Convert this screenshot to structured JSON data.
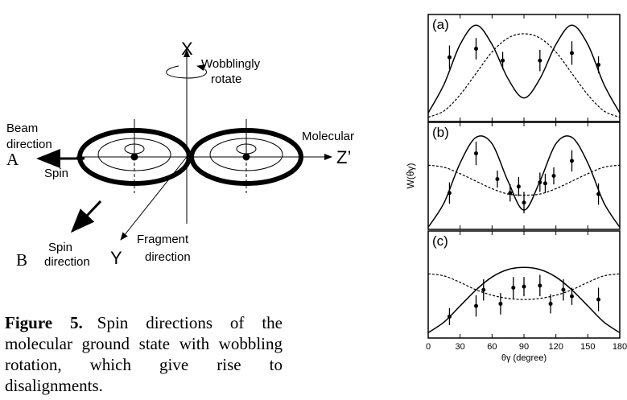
{
  "diagram": {
    "x_axis": "X",
    "rotate": [
      "Wobblingly",
      "rotate"
    ],
    "beam": [
      "Beam",
      "direction"
    ],
    "molecular": "Molecular",
    "z_axis": "Z’",
    "a": "A",
    "spin": "Spin",
    "b": "B",
    "spin_direction": [
      "Spin",
      "direction"
    ],
    "y_axis": "Y",
    "fragment": [
      "Fragment",
      "direction"
    ]
  },
  "caption": {
    "label": "Figure 5.",
    "text": "Spin directions of the molecular ground state with wobbling rotation, which give rise to disalignments."
  },
  "chart_data": [
    {
      "type": "scatter",
      "label": "(a)",
      "xlim": [
        0,
        180
      ],
      "xticks": [
        0,
        30,
        60,
        90,
        120,
        150,
        180
      ],
      "ylim": [
        0,
        1
      ],
      "series": [
        {
          "style": "solid",
          "color": "#000",
          "x": [
            0,
            15,
            30,
            45,
            60,
            75,
            90,
            105,
            120,
            135,
            150,
            165,
            180
          ],
          "values": [
            0.08,
            0.35,
            0.72,
            0.9,
            0.72,
            0.4,
            0.22,
            0.4,
            0.72,
            0.9,
            0.72,
            0.35,
            0.08
          ]
        },
        {
          "style": "dashed",
          "color": "#000",
          "x": [
            0,
            15,
            30,
            45,
            60,
            75,
            90,
            105,
            120,
            135,
            150,
            165,
            180
          ],
          "values": [
            0.04,
            0.1,
            0.25,
            0.45,
            0.65,
            0.78,
            0.82,
            0.78,
            0.65,
            0.45,
            0.25,
            0.1,
            0.04
          ]
        },
        {
          "style": "points",
          "color": "#000",
          "x": [
            20,
            45,
            70,
            105,
            135,
            160
          ],
          "values": [
            0.6,
            0.68,
            0.57,
            0.57,
            0.64,
            0.53
          ],
          "errors": [
            0.11,
            0.1,
            0.08,
            0.1,
            0.11,
            0.08
          ]
        }
      ]
    },
    {
      "type": "scatter",
      "label": "(b)",
      "ylabel": "W(θγ)",
      "xlim": [
        0,
        180
      ],
      "xticks": [
        0,
        30,
        60,
        90,
        120,
        150,
        180
      ],
      "ylim": [
        0,
        1
      ],
      "series": [
        {
          "style": "solid",
          "color": "#000",
          "x": [
            0,
            15,
            30,
            45,
            60,
            75,
            90,
            105,
            120,
            135,
            150,
            165,
            180
          ],
          "values": [
            0.02,
            0.25,
            0.62,
            0.86,
            0.8,
            0.45,
            0.18,
            0.45,
            0.8,
            0.86,
            0.62,
            0.25,
            0.02
          ]
        },
        {
          "style": "dashed",
          "color": "#000",
          "x": [
            0,
            15,
            30,
            45,
            60,
            75,
            90,
            105,
            120,
            135,
            150,
            165,
            180
          ],
          "values": [
            0.6,
            0.58,
            0.52,
            0.45,
            0.38,
            0.33,
            0.32,
            0.33,
            0.38,
            0.45,
            0.52,
            0.58,
            0.6
          ]
        },
        {
          "style": "points",
          "color": "#000",
          "x": [
            20,
            45,
            65,
            77,
            85,
            90,
            105,
            110,
            118,
            135,
            160
          ],
          "values": [
            0.34,
            0.71,
            0.47,
            0.34,
            0.4,
            0.25,
            0.44,
            0.43,
            0.5,
            0.64,
            0.33
          ],
          "errors": [
            0.1,
            0.11,
            0.08,
            0.08,
            0.09,
            0.1,
            0.09,
            0.09,
            0.08,
            0.1,
            0.1
          ]
        }
      ]
    },
    {
      "type": "scatter",
      "label": "(c)",
      "xlabel": "θγ (degree)",
      "xlim": [
        0,
        180
      ],
      "xticks": [
        0,
        30,
        60,
        90,
        120,
        150,
        180
      ],
      "ylim": [
        0,
        1
      ],
      "series": [
        {
          "style": "solid",
          "color": "#000",
          "x": [
            0,
            15,
            30,
            45,
            60,
            75,
            90,
            105,
            120,
            135,
            150,
            165,
            180
          ],
          "values": [
            0.05,
            0.15,
            0.3,
            0.45,
            0.57,
            0.64,
            0.66,
            0.64,
            0.57,
            0.45,
            0.3,
            0.15,
            0.05
          ]
        },
        {
          "style": "dashed",
          "color": "#000",
          "x": [
            0,
            15,
            30,
            45,
            60,
            75,
            90,
            105,
            120,
            135,
            150,
            165,
            180
          ],
          "values": [
            0.6,
            0.58,
            0.52,
            0.45,
            0.4,
            0.37,
            0.36,
            0.37,
            0.4,
            0.45,
            0.52,
            0.58,
            0.6
          ]
        },
        {
          "style": "points",
          "color": "#000",
          "x": [
            20,
            45,
            52,
            68,
            80,
            90,
            105,
            115,
            127,
            135,
            160
          ],
          "values": [
            0.2,
            0.3,
            0.45,
            0.32,
            0.47,
            0.48,
            0.49,
            0.32,
            0.45,
            0.39,
            0.36
          ],
          "errors": [
            0.08,
            0.1,
            0.1,
            0.1,
            0.1,
            0.09,
            0.1,
            0.09,
            0.1,
            0.08,
            0.11
          ]
        }
      ]
    }
  ]
}
